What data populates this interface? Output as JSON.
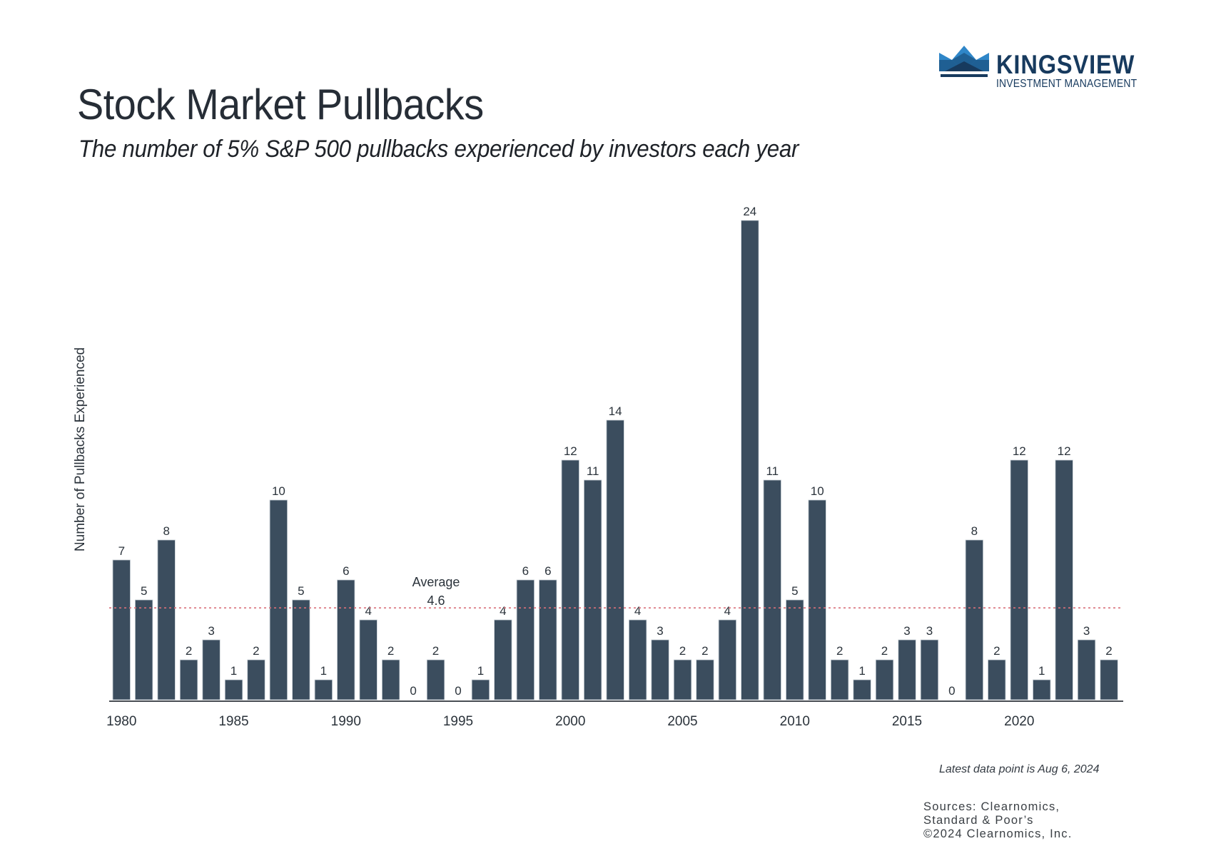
{
  "header": {
    "title": "Stock Market Pullbacks",
    "subtitle": "The number of 5% S&P 500 pullbacks experienced by investors each year"
  },
  "logo": {
    "icon": "crown-icon",
    "name": "KINGSVIEW",
    "tagline": "INVESTMENT MANAGEMENT",
    "colors": {
      "dark": "#173a5e",
      "mid": "#1f5f93",
      "light": "#2f86c8"
    }
  },
  "chart_data": {
    "type": "bar",
    "title": "Stock Market Pullbacks",
    "subtitle": "The number of 5% S&P 500 pullbacks experienced by investors each year",
    "xlabel": "",
    "ylabel": "Number of Pullbacks Experienced",
    "categories": [
      "1980",
      "1981",
      "1982",
      "1983",
      "1984",
      "1985",
      "1986",
      "1987",
      "1988",
      "1989",
      "1990",
      "1991",
      "1992",
      "1993",
      "1994",
      "1995",
      "1996",
      "1997",
      "1998",
      "1999",
      "2000",
      "2001",
      "2002",
      "2003",
      "2004",
      "2005",
      "2006",
      "2007",
      "2008",
      "2009",
      "2010",
      "2011",
      "2012",
      "2013",
      "2014",
      "2015",
      "2016",
      "2017",
      "2018",
      "2019",
      "2020",
      "2021",
      "2022",
      "2023",
      "2024"
    ],
    "values": [
      7,
      5,
      8,
      2,
      3,
      1,
      2,
      10,
      5,
      1,
      6,
      4,
      2,
      0,
      2,
      0,
      1,
      4,
      6,
      6,
      12,
      11,
      14,
      4,
      3,
      2,
      2,
      4,
      24,
      11,
      5,
      10,
      2,
      1,
      2,
      3,
      3,
      0,
      8,
      2,
      12,
      1,
      12,
      3,
      2
    ],
    "x_tick_labels": [
      "1980",
      "1985",
      "1990",
      "1995",
      "2000",
      "2005",
      "2010",
      "2015",
      "2020"
    ],
    "ylim": [
      0,
      24
    ],
    "grid": false,
    "data_labels": true,
    "bar_color": "#3b4d5e",
    "reference_line": {
      "label": "Average",
      "value": 4.6,
      "value_label": "4.6",
      "color": "#d9707a",
      "style": "dotted"
    }
  },
  "footer": {
    "note": "Latest data point is Aug 6, 2024",
    "sources": [
      "Sources: Clearnomics,",
      "Standard & Poor’s",
      "©2024 Clearnomics, Inc."
    ]
  }
}
